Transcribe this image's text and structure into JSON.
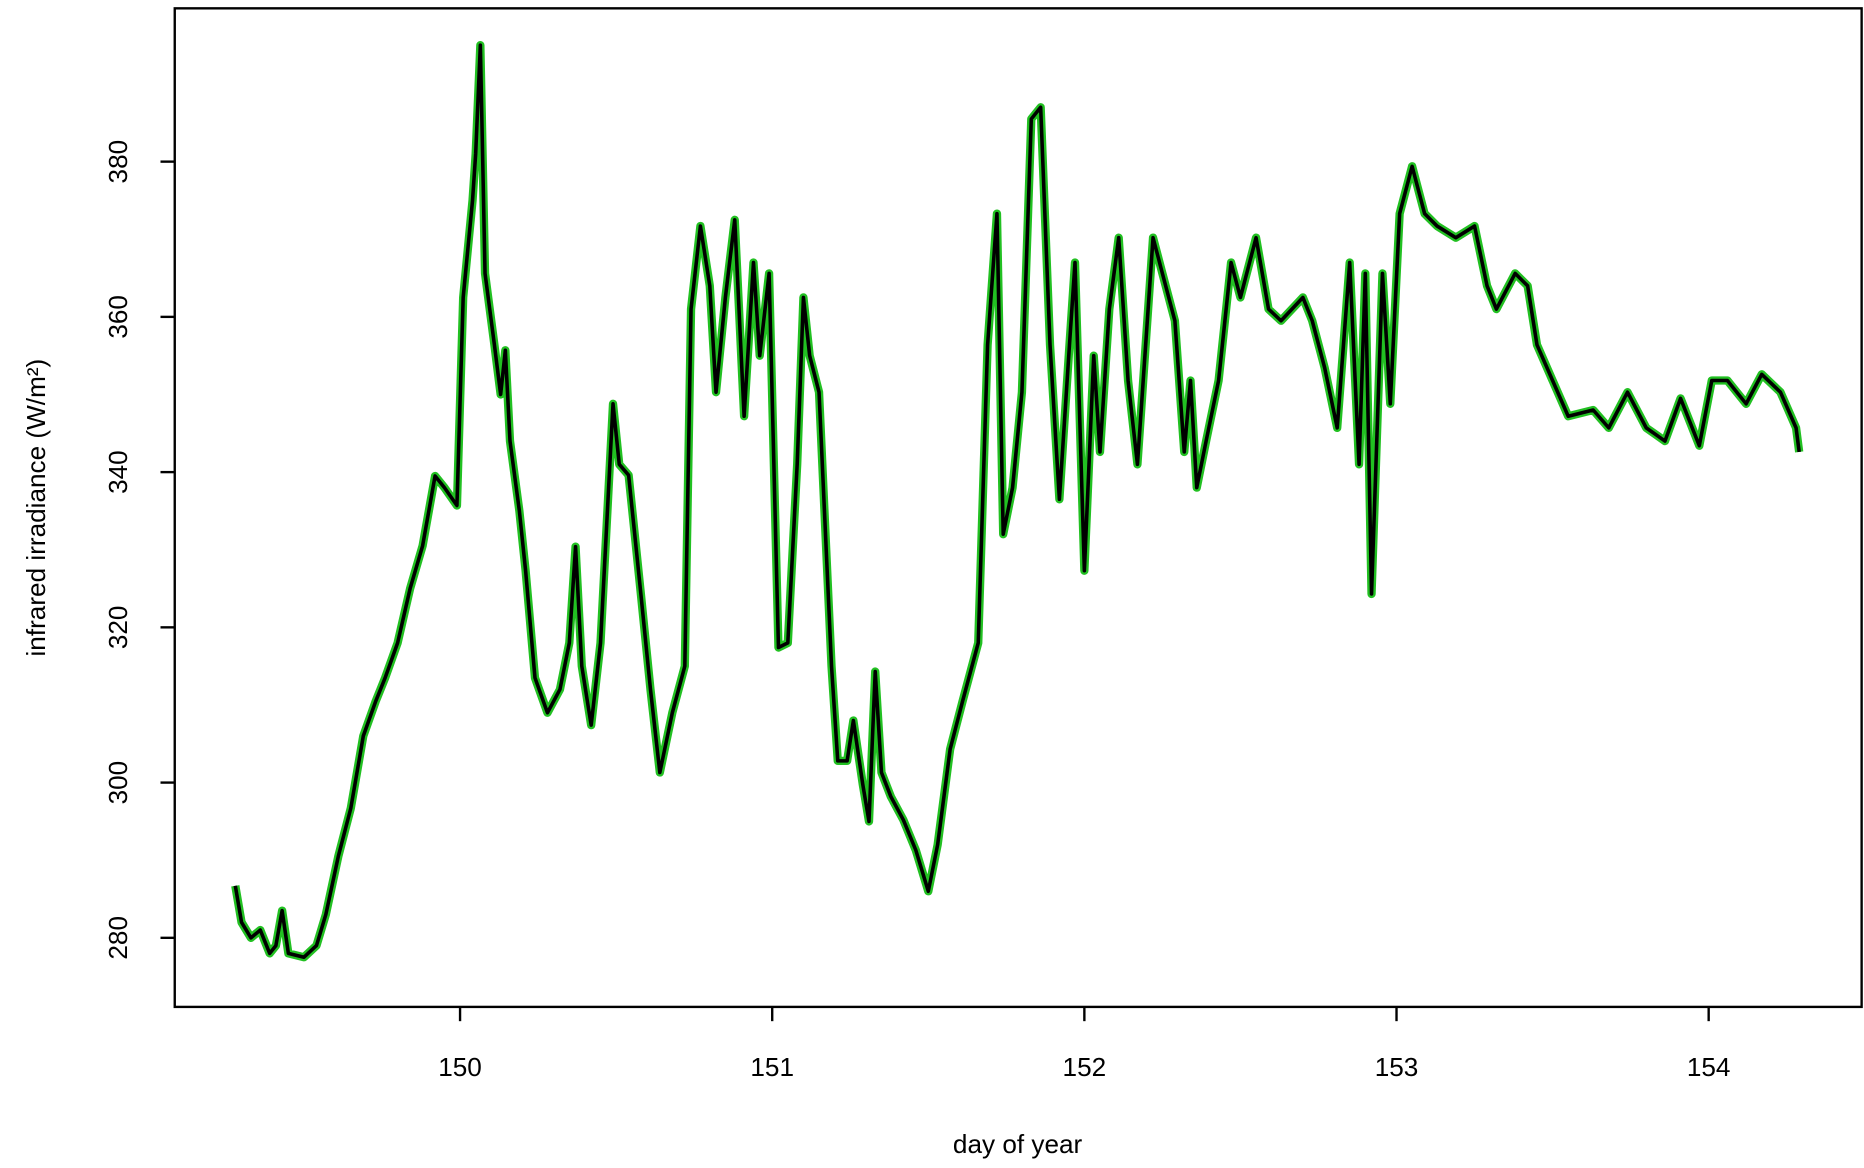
{
  "chart_data": {
    "type": "line",
    "x_label": "day of year",
    "y_label": "infrared irradiance (W/m²)",
    "x": [
      149.28,
      149.3,
      149.33,
      149.36,
      149.39,
      149.41,
      149.43,
      149.45,
      149.5,
      149.54,
      149.57,
      149.61,
      149.65,
      149.69,
      149.73,
      149.76,
      149.8,
      149.84,
      149.88,
      149.92,
      149.95,
      149.99,
      150.01,
      150.04,
      150.05,
      150.065,
      150.08,
      150.11,
      150.13,
      150.145,
      150.16,
      150.19,
      150.21,
      150.24,
      150.28,
      150.32,
      150.35,
      150.37,
      150.39,
      150.42,
      150.45,
      150.49,
      150.51,
      150.54,
      150.58,
      150.61,
      150.64,
      150.68,
      150.72,
      150.74,
      150.77,
      150.8,
      150.82,
      150.85,
      150.88,
      150.91,
      150.94,
      150.96,
      150.99,
      151.02,
      151.05,
      151.08,
      151.1,
      151.12,
      151.15,
      151.19,
      151.21,
      151.24,
      151.26,
      151.29,
      151.31,
      151.33,
      151.35,
      151.38,
      151.42,
      151.46,
      151.5,
      151.53,
      151.57,
      151.61,
      151.66,
      151.69,
      151.72,
      151.74,
      151.77,
      151.8,
      151.83,
      151.86,
      151.89,
      151.92,
      151.95,
      151.97,
      152.0,
      152.03,
      152.05,
      152.08,
      152.11,
      152.14,
      152.17,
      152.22,
      152.25,
      152.29,
      152.32,
      152.34,
      152.36,
      152.39,
      152.43,
      152.47,
      152.5,
      152.55,
      152.59,
      152.63,
      152.7,
      152.73,
      152.77,
      152.81,
      152.85,
      152.88,
      152.9,
      152.92,
      152.955,
      152.98,
      153.01,
      153.05,
      153.09,
      153.13,
      153.19,
      153.25,
      153.29,
      153.32,
      153.38,
      153.42,
      153.45,
      153.5,
      153.55,
      153.63,
      153.68,
      153.74,
      153.8,
      153.86,
      153.91,
      153.97,
      154.01,
      154.06,
      154.12,
      154.17,
      154.23,
      154.28,
      154.29
    ],
    "series": [
      {
        "color": "#22c022",
        "values": [
          286.7,
          282,
          280,
          281,
          278,
          279,
          283.5,
          278,
          277.5,
          279,
          283,
          290.5,
          296.7,
          306,
          310.5,
          313.5,
          318,
          325,
          330.5,
          339.5,
          338,
          335.7,
          362.5,
          375,
          381,
          395,
          365.6,
          356.4,
          350,
          355.7,
          344,
          335,
          327.3,
          313.5,
          309,
          312,
          318,
          330.4,
          315,
          307.4,
          318,
          348.8,
          341,
          339.6,
          324,
          312,
          301.3,
          309,
          315,
          361,
          371.7,
          364,
          350.3,
          362.5,
          372.5,
          347.2,
          367,
          355,
          365.6,
          317.4,
          318,
          341,
          362.5,
          355,
          350.3,
          315,
          302.8,
          302.8,
          308,
          299.8,
          295,
          314.3,
          301.3,
          298.2,
          295.2,
          291.3,
          286,
          292,
          304.3,
          310.5,
          318,
          356.4,
          373.3,
          332,
          338,
          350.3,
          385.5,
          387,
          356.4,
          336.5,
          355,
          367,
          327.3,
          355,
          342.6,
          361,
          370.2,
          351.8,
          341,
          370.2,
          365.6,
          359.5,
          342.6,
          351.8,
          338,
          344,
          351.8,
          367,
          362.5,
          370.2,
          361,
          359.5,
          362.5,
          359.5,
          353.4,
          345.7,
          367,
          341,
          365.6,
          324.3,
          365.6,
          348.8,
          373.3,
          379.4,
          373.3,
          371.7,
          370.2,
          371.7,
          364,
          361,
          365.6,
          364,
          356.4,
          351.8,
          347.2,
          348,
          345.7,
          350.3,
          345.7,
          344,
          349.5,
          343.4,
          351.8,
          351.8,
          348.8,
          352.6,
          350.3,
          345.7,
          342.6
        ]
      },
      {
        "color": "#000000",
        "values": [
          286.7,
          282,
          280,
          281,
          278,
          279,
          283.5,
          278,
          277.5,
          279,
          283,
          290.5,
          296.7,
          306,
          310.5,
          313.5,
          318,
          325,
          330.5,
          339.5,
          338,
          335.7,
          362.5,
          375,
          381,
          395,
          365.6,
          356.4,
          350,
          355.7,
          344,
          335,
          327.3,
          313.5,
          309,
          312,
          318,
          330.4,
          315,
          307.4,
          318,
          348.8,
          341,
          339.6,
          324,
          312,
          301.3,
          309,
          315,
          361,
          371.7,
          364,
          350.3,
          362.5,
          372.5,
          347.2,
          367,
          355,
          365.6,
          317.4,
          318,
          341,
          362.5,
          355,
          350.3,
          315,
          302.8,
          302.8,
          308,
          299.8,
          295,
          314.3,
          301.3,
          298.2,
          295.2,
          291.3,
          286,
          292,
          304.3,
          310.5,
          318,
          356.4,
          373.3,
          332,
          338,
          350.3,
          385.5,
          387,
          356.4,
          336.5,
          355,
          367,
          327.3,
          355,
          342.6,
          361,
          370.2,
          351.8,
          341,
          370.2,
          365.6,
          359.5,
          342.6,
          351.8,
          338,
          344,
          351.8,
          367,
          362.5,
          370.2,
          361,
          359.5,
          362.5,
          359.5,
          353.4,
          345.7,
          367,
          341,
          365.6,
          324.3,
          365.6,
          348.8,
          373.3,
          379.4,
          373.3,
          371.7,
          370.2,
          371.7,
          364,
          361,
          365.6,
          364,
          356.4,
          351.8,
          347.2,
          348,
          345.7,
          350.3,
          345.7,
          344,
          349.5,
          343.4,
          351.8,
          351.8,
          348.8,
          352.6,
          350.3,
          345.7,
          342.6
        ]
      }
    ],
    "xlim": [
      149.086,
      154.49
    ],
    "ylim": [
      271.1,
      399.75
    ],
    "xticks": [
      150,
      151,
      152,
      153,
      154
    ],
    "yticks": [
      280,
      300,
      320,
      340,
      360,
      380
    ]
  }
}
